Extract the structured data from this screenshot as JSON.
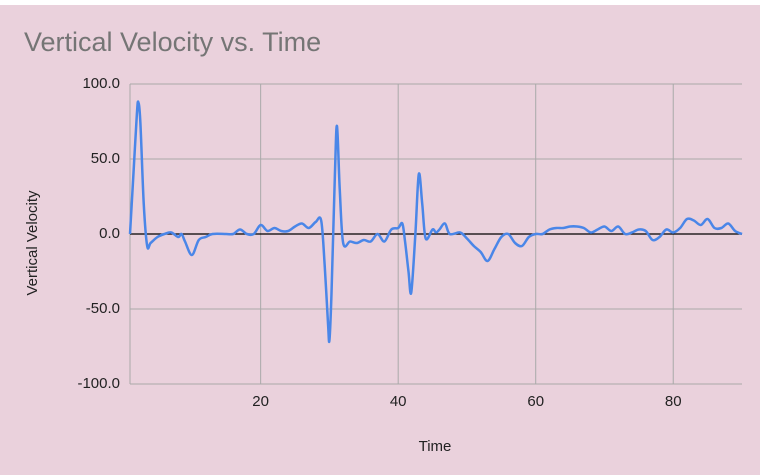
{
  "chart_data": {
    "type": "line",
    "title": "Vertical Velocity vs. Time",
    "x_label": "Time",
    "y_label": "Vertical Velocity",
    "x": [
      1,
      1.5,
      2,
      2.2,
      2.5,
      3,
      3.5,
      4,
      5,
      6,
      7,
      8,
      8.5,
      9,
      10,
      11,
      12,
      13,
      15,
      16,
      17,
      18,
      19,
      20,
      21,
      22,
      23,
      24,
      25,
      26,
      27,
      28,
      28.8,
      29.3,
      29.8,
      30,
      30.3,
      30.8,
      31.1,
      31.5,
      32,
      33,
      34,
      35,
      36,
      37,
      38,
      39,
      40,
      40.6,
      41,
      41.5,
      41.9,
      42.5,
      43,
      43.5,
      44,
      45,
      45.5,
      46,
      46.8,
      47.5,
      49,
      50,
      51,
      52,
      53,
      54,
      55,
      56,
      57,
      58,
      59,
      60,
      61,
      62,
      63,
      64,
      65,
      66,
      67,
      68,
      69,
      70,
      71,
      72,
      73,
      74,
      75,
      76,
      77,
      78,
      79,
      80,
      81,
      82,
      83,
      84,
      85,
      86,
      87,
      88,
      89,
      90
    ],
    "series": [
      {
        "name": "Vertical Velocity",
        "color": "#4a86e8",
        "values": [
          0,
          40,
          80,
          88,
          75,
          20,
          -8,
          -6,
          -2,
          0,
          1,
          -2,
          0,
          -5,
          -14,
          -4,
          -2,
          0,
          0,
          0,
          3,
          0,
          0,
          6,
          2,
          4,
          2,
          2,
          5,
          7,
          4,
          8,
          9,
          -20,
          -60,
          -71,
          -40,
          40,
          72,
          30,
          -6,
          -5,
          -6,
          -4,
          -5,
          0,
          -5,
          3,
          4,
          7,
          -5,
          -25,
          -39,
          0,
          40,
          20,
          -3,
          3,
          1,
          3,
          7,
          0,
          1,
          -3,
          -8,
          -12,
          -18,
          -10,
          -2,
          0,
          -6,
          -8,
          -2,
          0,
          0,
          3,
          4,
          4,
          5,
          5,
          4,
          1,
          3,
          5,
          2,
          5,
          0,
          1,
          3,
          2,
          -4,
          -2,
          3,
          1,
          4,
          10,
          9,
          6,
          10,
          4,
          4,
          7,
          2,
          0
        ]
      }
    ],
    "xlim": [
      1,
      90
    ],
    "ylim": [
      -100,
      100
    ],
    "xticks": [
      20,
      40,
      60,
      80
    ],
    "yticks": [
      {
        "value": -100,
        "label": "-100.0"
      },
      {
        "value": -50,
        "label": "-50.0"
      },
      {
        "value": 0,
        "label": "0.0"
      },
      {
        "value": 50,
        "label": "50.0"
      },
      {
        "value": 100,
        "label": "100.0"
      }
    ],
    "grid": true
  }
}
